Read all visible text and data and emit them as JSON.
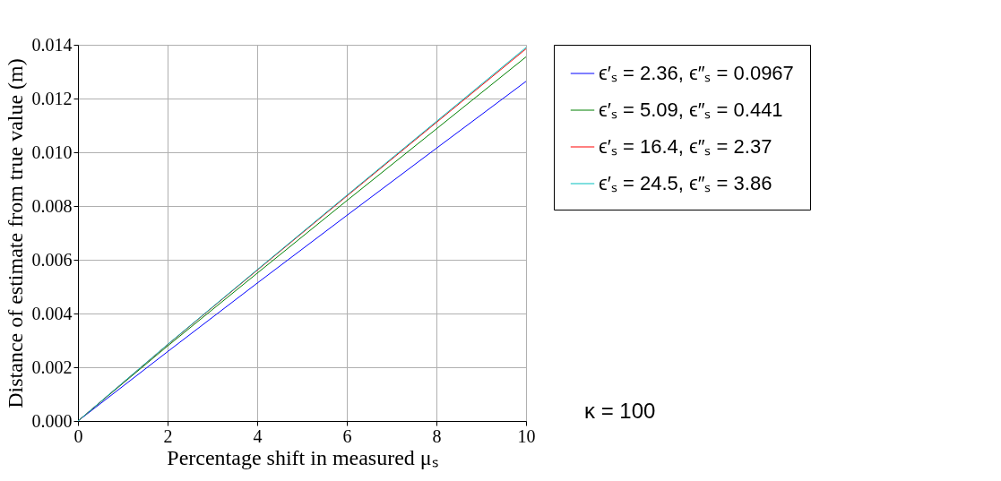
{
  "chart_data": {
    "type": "line",
    "xlabel": "Percentage shift in measured μₛ",
    "ylabel": "Distance of estimate from true value (m)",
    "x": [
      0,
      2,
      4,
      6,
      8,
      10
    ],
    "series": [
      {
        "name": "ϵ′ₛ = 2.36, ϵ″ₛ = 0.0967",
        "color": "#0000ff",
        "values": [
          0,
          0.00258,
          0.00513,
          0.00765,
          0.01015,
          0.01264
        ]
      },
      {
        "name": "ϵ′ₛ = 5.09, ϵ″ₛ = 0.441",
        "color": "#008000",
        "values": [
          0,
          0.00279,
          0.0055,
          0.0082,
          0.01087,
          0.01355
        ]
      },
      {
        "name": "ϵ′ₛ = 16.4, ϵ″ₛ = 2.37",
        "color": "#ff0000",
        "values": [
          0,
          0.00284,
          0.00561,
          0.00837,
          0.01111,
          0.01385
        ]
      },
      {
        "name": "ϵ′ₛ = 24.5, ϵ″ₛ = 3.86",
        "color": "#00bfbf",
        "values": [
          0,
          0.00285,
          0.00563,
          0.0084,
          0.01115,
          0.0139
        ]
      }
    ],
    "xlim": [
      0,
      10
    ],
    "xticks": [
      0,
      2,
      4,
      6,
      8,
      10
    ],
    "ylim": [
      0,
      0.014
    ],
    "yticks": [
      {
        "value": 0,
        "label": "0.000"
      },
      0.002,
      0.004,
      0.006,
      0.008,
      {
        "value": 0.01,
        "label": "0.010"
      },
      0.012,
      0.014
    ],
    "grid": true,
    "legend": "right",
    "marker": "none",
    "line_style": "solid",
    "annotations": [
      "κ = 100"
    ]
  }
}
